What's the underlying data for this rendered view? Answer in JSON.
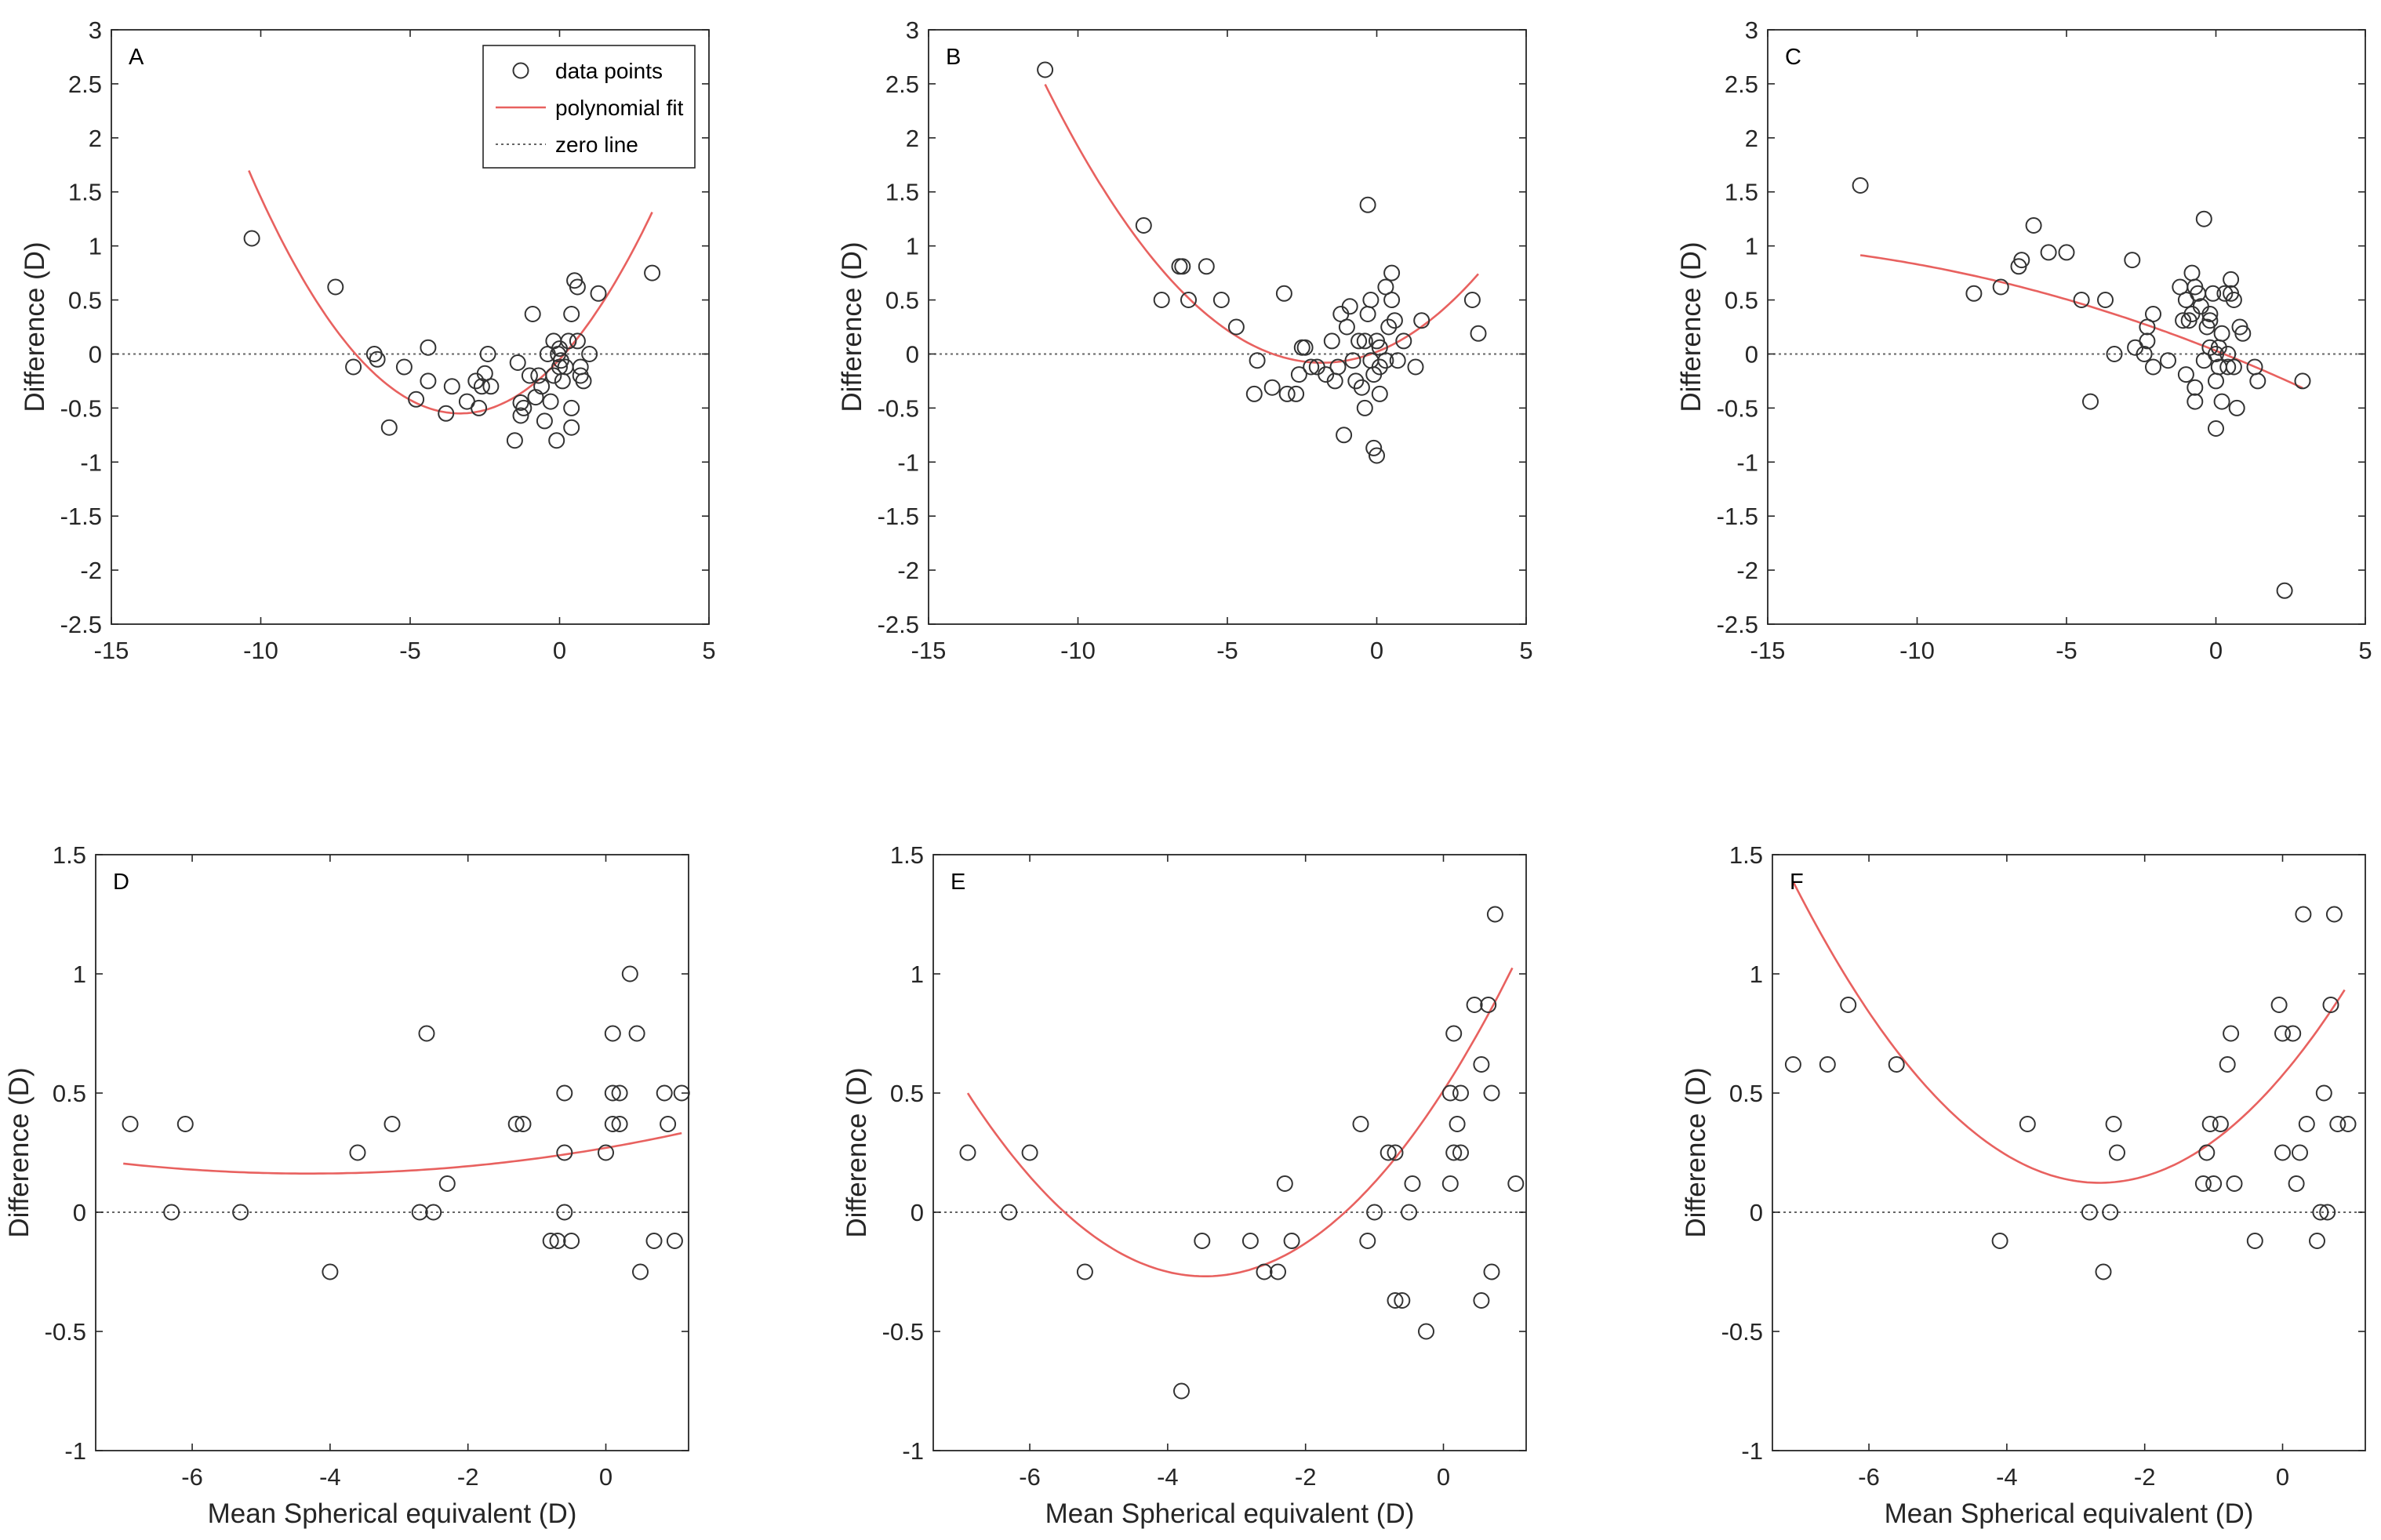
{
  "colors": {
    "fit": "#e8615f",
    "points": "#333333",
    "zero": "#666666",
    "axis": "#262626"
  },
  "legend": {
    "items": [
      {
        "label": "data points",
        "kind": "points"
      },
      {
        "label": "polynomial fit",
        "kind": "fit"
      },
      {
        "label": "zero line",
        "kind": "zero"
      }
    ]
  },
  "chart_data": [
    {
      "type": "scatter",
      "panel": "A",
      "xlabel": "",
      "ylabel": "Difference (D)",
      "xlim": [
        -15,
        5
      ],
      "ylim": [
        -2.5,
        3
      ],
      "xticks": [
        -15,
        -10,
        -5,
        0,
        5
      ],
      "yticks": [
        -2.5,
        -2,
        -1.5,
        -1,
        -0.5,
        0,
        0.5,
        1,
        1.5,
        2,
        2.5,
        3
      ],
      "fit": [
        0.045,
        0.3,
        -0.05
      ],
      "fit_range": [
        -10.4,
        3.1
      ],
      "points": [
        [
          -10.3,
          1.07
        ],
        [
          -7.5,
          0.62
        ],
        [
          -6.9,
          -0.12
        ],
        [
          -6.2,
          0
        ],
        [
          -6.1,
          -0.05
        ],
        [
          -5.7,
          -0.68
        ],
        [
          -5.2,
          -0.12
        ],
        [
          -4.8,
          -0.42
        ],
        [
          -4.4,
          0.06
        ],
        [
          -4.4,
          -0.25
        ],
        [
          -3.8,
          -0.55
        ],
        [
          -3.6,
          -0.3
        ],
        [
          -3.1,
          -0.44
        ],
        [
          -2.8,
          -0.25
        ],
        [
          -2.7,
          -0.5
        ],
        [
          -2.6,
          -0.3
        ],
        [
          -2.5,
          -0.18
        ],
        [
          -2.4,
          0
        ],
        [
          -2.3,
          -0.3
        ],
        [
          -1.5,
          -0.8
        ],
        [
          -1.4,
          -0.08
        ],
        [
          -1.3,
          -0.45
        ],
        [
          -1.3,
          -0.57
        ],
        [
          -1.2,
          -0.5
        ],
        [
          -1.0,
          -0.2
        ],
        [
          -0.9,
          0.37
        ],
        [
          -0.8,
          -0.4
        ],
        [
          -0.7,
          -0.2
        ],
        [
          -0.6,
          -0.3
        ],
        [
          -0.5,
          -0.62
        ],
        [
          -0.4,
          0
        ],
        [
          -0.3,
          -0.44
        ],
        [
          -0.2,
          -0.2
        ],
        [
          -0.2,
          0.12
        ],
        [
          -0.1,
          -0.8
        ],
        [
          -0.05,
          0
        ],
        [
          0,
          0.05
        ],
        [
          0,
          -0.12
        ],
        [
          0.05,
          -0.06
        ],
        [
          0.1,
          -0.25
        ],
        [
          0.2,
          -0.12
        ],
        [
          0.3,
          0.12
        ],
        [
          0.4,
          -0.5
        ],
        [
          0.4,
          -0.68
        ],
        [
          0.4,
          0.37
        ],
        [
          0.5,
          0.68
        ],
        [
          0.6,
          0.62
        ],
        [
          0.6,
          0.12
        ],
        [
          0.7,
          -0.12
        ],
        [
          0.7,
          -0.2
        ],
        [
          0.8,
          -0.25
        ],
        [
          1.0,
          0
        ],
        [
          1.3,
          0.56
        ],
        [
          3.1,
          0.75
        ]
      ]
    },
    {
      "type": "scatter",
      "panel": "B",
      "xlabel": "",
      "ylabel": "Difference (D)",
      "xlim": [
        -15,
        5
      ],
      "ylim": [
        -2.5,
        3
      ],
      "xticks": [
        -15,
        -10,
        -5,
        0,
        5
      ],
      "yticks": [
        -2.5,
        -2,
        -1.5,
        -1,
        -0.5,
        0,
        0.5,
        1,
        1.5,
        2,
        2.5,
        3
      ],
      "fit": [
        0.03,
        0.11,
        0.02
      ],
      "fit_range": [
        -11.1,
        3.4
      ],
      "points": [
        [
          -11.1,
          2.63
        ],
        [
          -7.8,
          1.19
        ],
        [
          -7.2,
          0.5
        ],
        [
          -6.6,
          0.81
        ],
        [
          -6.5,
          0.81
        ],
        [
          -6.3,
          0.5
        ],
        [
          -5.7,
          0.81
        ],
        [
          -5.2,
          0.5
        ],
        [
          -4.7,
          0.25
        ],
        [
          -4.1,
          -0.37
        ],
        [
          -4.0,
          -0.06
        ],
        [
          -3.5,
          -0.31
        ],
        [
          -3.1,
          0.56
        ],
        [
          -3.0,
          -0.37
        ],
        [
          -2.7,
          -0.37
        ],
        [
          -2.6,
          -0.19
        ],
        [
          -2.5,
          0.06
        ],
        [
          -2.4,
          0.06
        ],
        [
          -2.2,
          -0.12
        ],
        [
          -2.0,
          -0.12
        ],
        [
          -1.7,
          -0.19
        ],
        [
          -1.5,
          0.12
        ],
        [
          -1.4,
          -0.25
        ],
        [
          -1.3,
          -0.12
        ],
        [
          -1.2,
          0.37
        ],
        [
          -1.1,
          -0.75
        ],
        [
          -1.0,
          0.25
        ],
        [
          -0.9,
          0.44
        ],
        [
          -0.8,
          -0.06
        ],
        [
          -0.7,
          -0.25
        ],
        [
          -0.6,
          0.12
        ],
        [
          -0.5,
          -0.31
        ],
        [
          -0.4,
          -0.5
        ],
        [
          -0.4,
          0.12
        ],
        [
          -0.3,
          1.38
        ],
        [
          -0.3,
          0.37
        ],
        [
          -0.2,
          0.5
        ],
        [
          -0.2,
          -0.06
        ],
        [
          -0.1,
          -0.19
        ],
        [
          -0.1,
          -0.87
        ],
        [
          0,
          -0.94
        ],
        [
          0,
          0.12
        ],
        [
          0.1,
          -0.12
        ],
        [
          0.1,
          0.06
        ],
        [
          0.1,
          -0.37
        ],
        [
          0.3,
          0.62
        ],
        [
          0.3,
          -0.06
        ],
        [
          0.4,
          0.25
        ],
        [
          0.5,
          0.75
        ],
        [
          0.5,
          0.5
        ],
        [
          0.6,
          0.31
        ],
        [
          0.7,
          -0.06
        ],
        [
          0.9,
          0.12
        ],
        [
          1.3,
          -0.12
        ],
        [
          1.5,
          0.31
        ],
        [
          3.2,
          0.5
        ],
        [
          3.4,
          0.19
        ]
      ]
    },
    {
      "type": "scatter",
      "panel": "C",
      "xlabel": "",
      "ylabel": "Difference (D)",
      "xlim": [
        -15,
        5
      ],
      "ylim": [
        -2.5,
        3
      ],
      "xticks": [
        -15,
        -10,
        -5,
        0,
        5
      ],
      "yticks": [
        -2.5,
        -2,
        -1.5,
        -1,
        -0.5,
        0,
        0.5,
        1,
        1.5,
        2,
        2.5,
        3
      ],
      "fit": [
        -0.003,
        -0.11,
        0.03
      ],
      "fit_range": [
        -11.9,
        2.9
      ],
      "points": [
        [
          -11.9,
          1.56
        ],
        [
          -8.1,
          0.56
        ],
        [
          -7.2,
          0.62
        ],
        [
          -6.6,
          0.81
        ],
        [
          -6.5,
          0.87
        ],
        [
          -6.1,
          1.19
        ],
        [
          -5.6,
          0.94
        ],
        [
          -5.0,
          0.94
        ],
        [
          -4.5,
          0.5
        ],
        [
          -4.2,
          -0.44
        ],
        [
          -3.7,
          0.5
        ],
        [
          -3.4,
          0
        ],
        [
          -2.8,
          0.87
        ],
        [
          -2.7,
          0.06
        ],
        [
          -2.4,
          0
        ],
        [
          -2.3,
          0.12
        ],
        [
          -2.3,
          0.25
        ],
        [
          -2.1,
          0.37
        ],
        [
          -2.1,
          -0.12
        ],
        [
          -1.6,
          -0.06
        ],
        [
          -1.2,
          0.62
        ],
        [
          -1.1,
          0.31
        ],
        [
          -1.0,
          0.5
        ],
        [
          -1.0,
          -0.19
        ],
        [
          -0.9,
          0.31
        ],
        [
          -0.8,
          0.37
        ],
        [
          -0.8,
          0.75
        ],
        [
          -0.7,
          -0.31
        ],
        [
          -0.7,
          0.62
        ],
        [
          -0.7,
          -0.44
        ],
        [
          -0.6,
          0.56
        ],
        [
          -0.5,
          0.44
        ],
        [
          -0.4,
          1.25
        ],
        [
          -0.4,
          -0.06
        ],
        [
          -0.3,
          0.25
        ],
        [
          -0.2,
          0.37
        ],
        [
          -0.2,
          0.31
        ],
        [
          -0.2,
          0.06
        ],
        [
          -0.1,
          0.56
        ],
        [
          0,
          0
        ],
        [
          0,
          -0.25
        ],
        [
          0,
          -0.69
        ],
        [
          0.1,
          -0.12
        ],
        [
          0.1,
          0.06
        ],
        [
          0.2,
          -0.44
        ],
        [
          0.2,
          0.19
        ],
        [
          0.3,
          0.56
        ],
        [
          0.4,
          0
        ],
        [
          0.4,
          -0.12
        ],
        [
          0.5,
          0.69
        ],
        [
          0.5,
          0.56
        ],
        [
          0.6,
          0.5
        ],
        [
          0.6,
          -0.12
        ],
        [
          0.7,
          -0.5
        ],
        [
          0.8,
          0.25
        ],
        [
          0.9,
          0.19
        ],
        [
          1.3,
          -0.12
        ],
        [
          1.4,
          -0.25
        ],
        [
          2.3,
          -2.19
        ],
        [
          2.9,
          -0.25
        ]
      ]
    },
    {
      "type": "scatter",
      "panel": "D",
      "xlabel": "Mean Spherical equivalent (D)",
      "ylabel": "Difference (D)",
      "xlim": [
        -7.4,
        1.2
      ],
      "ylim": [
        -1,
        1.5
      ],
      "xticks": [
        -6,
        -4,
        -2,
        0
      ],
      "yticks": [
        -1,
        -0.5,
        0,
        0.5,
        1,
        1.5
      ],
      "fit": [
        0.0058,
        0.05,
        0.27
      ],
      "fit_range": [
        -7.0,
        1.1
      ],
      "points": [
        [
          -6.9,
          0.37
        ],
        [
          -6.3,
          0
        ],
        [
          -6.1,
          0.37
        ],
        [
          -5.3,
          0
        ],
        [
          -4.0,
          -0.25
        ],
        [
          -3.6,
          0.25
        ],
        [
          -3.1,
          0.37
        ],
        [
          -2.7,
          0
        ],
        [
          -2.6,
          0.75
        ],
        [
          -2.5,
          0
        ],
        [
          -2.3,
          0.12
        ],
        [
          -1.3,
          0.37
        ],
        [
          -1.2,
          0.37
        ],
        [
          -0.8,
          -0.12
        ],
        [
          -0.7,
          -0.12
        ],
        [
          -0.6,
          0.5
        ],
        [
          -0.6,
          0.25
        ],
        [
          -0.6,
          0
        ],
        [
          -0.5,
          -0.12
        ],
        [
          0,
          0.25
        ],
        [
          0.1,
          0.37
        ],
        [
          0.1,
          0.75
        ],
        [
          0.1,
          0.5
        ],
        [
          0.2,
          0.5
        ],
        [
          0.2,
          0.37
        ],
        [
          0.35,
          1.0
        ],
        [
          0.45,
          0.75
        ],
        [
          0.5,
          -0.25
        ],
        [
          0.7,
          -0.12
        ],
        [
          0.85,
          0.5
        ],
        [
          0.9,
          0.37
        ],
        [
          1.0,
          -0.12
        ],
        [
          1.1,
          0.5
        ]
      ]
    },
    {
      "type": "scatter",
      "panel": "E",
      "xlabel": "Mean Spherical equivalent (D)",
      "ylabel": "Difference (D)",
      "xlim": [
        -7.4,
        1.2
      ],
      "ylim": [
        -1,
        1.5
      ],
      "xticks": [
        -6,
        -4,
        -2,
        0
      ],
      "yticks": [
        -1,
        -0.5,
        0,
        0.5,
        1,
        1.5
      ],
      "fit": [
        0.065,
        0.45,
        0.51
      ],
      "fit_range": [
        -6.9,
        1.0
      ],
      "points": [
        [
          -6.9,
          0.25
        ],
        [
          -6.3,
          0
        ],
        [
          -6.0,
          0.25
        ],
        [
          -5.2,
          -0.25
        ],
        [
          -3.8,
          -0.75
        ],
        [
          -3.5,
          -0.12
        ],
        [
          -2.8,
          -0.12
        ],
        [
          -2.6,
          -0.25
        ],
        [
          -2.4,
          -0.25
        ],
        [
          -2.3,
          0.12
        ],
        [
          -2.2,
          -0.12
        ],
        [
          -1.2,
          0.37
        ],
        [
          -1.1,
          -0.12
        ],
        [
          -1.0,
          0
        ],
        [
          -0.8,
          0.25
        ],
        [
          -0.7,
          -0.37
        ],
        [
          -0.7,
          0.25
        ],
        [
          -0.6,
          -0.37
        ],
        [
          -0.5,
          0
        ],
        [
          -0.45,
          0.12
        ],
        [
          -0.25,
          -0.5
        ],
        [
          0.1,
          0.12
        ],
        [
          0.1,
          0.5
        ],
        [
          0.15,
          0.75
        ],
        [
          0.15,
          0.25
        ],
        [
          0.2,
          0.37
        ],
        [
          0.25,
          0.5
        ],
        [
          0.25,
          0.25
        ],
        [
          0.45,
          0.87
        ],
        [
          0.55,
          0.62
        ],
        [
          0.55,
          -0.37
        ],
        [
          0.65,
          0.87
        ],
        [
          0.7,
          0.5
        ],
        [
          0.7,
          -0.25
        ],
        [
          0.75,
          1.25
        ],
        [
          1.05,
          0.12
        ]
      ]
    },
    {
      "type": "scatter",
      "panel": "F",
      "xlabel": "Mean Spherical equivalent (D)",
      "ylabel": "Difference (D)",
      "xlim": [
        -7.4,
        1.2
      ],
      "ylim": [
        -1,
        1.5
      ],
      "xticks": [
        -6,
        -4,
        -2,
        0
      ],
      "yticks": [
        -1,
        -0.5,
        0,
        0.5,
        1,
        1.5
      ],
      "fit": [
        0.064,
        0.34,
        0.575
      ],
      "fit_range": [
        -7.1,
        0.9
      ],
      "points": [
        [
          -7.1,
          0.62
        ],
        [
          -6.6,
          0.62
        ],
        [
          -6.3,
          0.87
        ],
        [
          -5.6,
          0.62
        ],
        [
          -4.1,
          -0.12
        ],
        [
          -3.7,
          0.37
        ],
        [
          -2.8,
          0
        ],
        [
          -2.6,
          -0.25
        ],
        [
          -2.5,
          0
        ],
        [
          -2.45,
          0.37
        ],
        [
          -2.4,
          0.25
        ],
        [
          -1.15,
          0.12
        ],
        [
          -1.1,
          0.25
        ],
        [
          -1.05,
          0.37
        ],
        [
          -1.0,
          0.12
        ],
        [
          -0.9,
          0.37
        ],
        [
          -0.8,
          0.62
        ],
        [
          -0.75,
          0.75
        ],
        [
          -0.7,
          0.12
        ],
        [
          -0.4,
          -0.12
        ],
        [
          -0.05,
          0.87
        ],
        [
          0,
          0.75
        ],
        [
          0,
          0.25
        ],
        [
          0.15,
          0.75
        ],
        [
          0.2,
          0.12
        ],
        [
          0.25,
          0.25
        ],
        [
          0.3,
          1.25
        ],
        [
          0.35,
          0.37
        ],
        [
          0.5,
          -0.12
        ],
        [
          0.55,
          0
        ],
        [
          0.6,
          0.5
        ],
        [
          0.65,
          0
        ],
        [
          0.7,
          0.87
        ],
        [
          0.75,
          1.25
        ],
        [
          0.8,
          0.37
        ],
        [
          0.95,
          0.37
        ]
      ]
    }
  ]
}
